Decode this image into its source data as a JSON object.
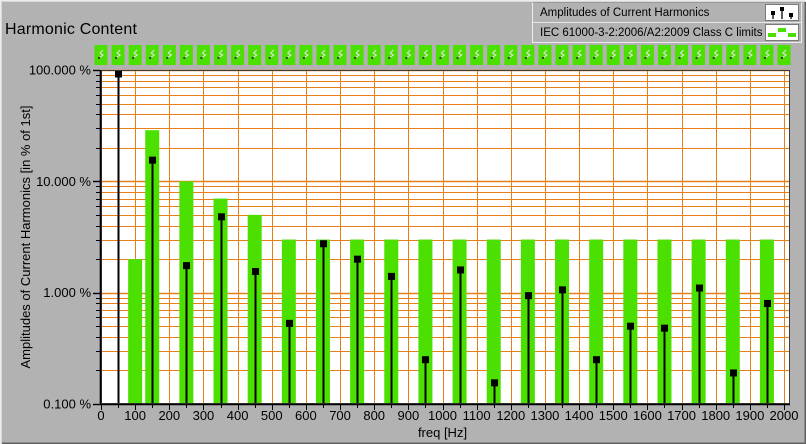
{
  "window": {
    "title": "Harmonic Content"
  },
  "legend": {
    "items": [
      {
        "label": "Amplitudes of Current Harmonics",
        "icon": "stem-plot-icon"
      },
      {
        "label": "IEC 61000-3-2:2006/A2:2009 Class C limits",
        "icon": "limit-bars-icon"
      }
    ]
  },
  "colors": {
    "limit_green": "#4ce000",
    "grid_orange": "#e8801a",
    "panel_grey": "#b2b2b2",
    "plot_background": "#ffffff",
    "series_black": "#000000",
    "pass_glyph_grey": "#dcdcdc"
  },
  "chart_data": {
    "type": "bar",
    "subtype": "bar-limits with stem markers, logarithmic y axis",
    "title": "Harmonic Content",
    "xlabel": "freq [Hz]",
    "ylabel": "Amplitudes of Current Harmonics [in % of 1st]",
    "x_ticks": [
      0,
      100,
      200,
      300,
      400,
      500,
      600,
      700,
      800,
      900,
      1000,
      1100,
      1200,
      1300,
      1400,
      1500,
      1600,
      1700,
      1800,
      1900,
      2000
    ],
    "x_minor_tick_step": 50,
    "y_scale": "log",
    "y_ticks": [
      {
        "value": 100,
        "label": "100.000 %"
      },
      {
        "value": 10,
        "label": "10.000 %"
      },
      {
        "value": 1,
        "label": "1.000 %"
      },
      {
        "value": 0.1,
        "label": "0.100 %"
      }
    ],
    "xlim": [
      0,
      2017
    ],
    "ylim": [
      0.1,
      100
    ],
    "grid": true,
    "legend_position": "top-right",
    "series": [
      {
        "name": "IEC 61000-3-2:2006/A2:2009 Class C limits",
        "type": "bar",
        "color": "#4ce000",
        "points": [
          [
            100,
            2
          ],
          [
            150,
            28.8
          ],
          [
            250,
            10
          ],
          [
            350,
            7
          ],
          [
            450,
            5
          ],
          [
            550,
            3
          ],
          [
            650,
            3
          ],
          [
            750,
            3
          ],
          [
            850,
            3
          ],
          [
            950,
            3
          ],
          [
            1050,
            3
          ],
          [
            1150,
            3
          ],
          [
            1250,
            3
          ],
          [
            1350,
            3
          ],
          [
            1450,
            3
          ],
          [
            1550,
            3
          ],
          [
            1650,
            3
          ],
          [
            1750,
            3
          ],
          [
            1850,
            3
          ],
          [
            1950,
            3
          ]
        ]
      },
      {
        "name": "Amplitudes of Current Harmonics",
        "type": "stem",
        "color": "#000000",
        "points": [
          [
            50,
            100
          ],
          [
            150,
            15.5
          ],
          [
            250,
            1.75
          ],
          [
            350,
            4.8
          ],
          [
            450,
            1.55
          ],
          [
            550,
            0.53
          ],
          [
            650,
            2.75
          ],
          [
            750,
            2.0
          ],
          [
            850,
            1.4
          ],
          [
            950,
            0.25
          ],
          [
            1050,
            1.6
          ],
          [
            1150,
            0.155
          ],
          [
            1250,
            0.94
          ],
          [
            1350,
            1.06
          ],
          [
            1450,
            0.25
          ],
          [
            1550,
            0.5
          ],
          [
            1650,
            0.48
          ],
          [
            1750,
            1.1
          ],
          [
            1850,
            0.19
          ],
          [
            1950,
            0.8
          ]
        ]
      }
    ],
    "pass_marker_row": {
      "count": 41,
      "freq_start": 0,
      "freq_step": 50,
      "color": "#4ce000"
    }
  }
}
